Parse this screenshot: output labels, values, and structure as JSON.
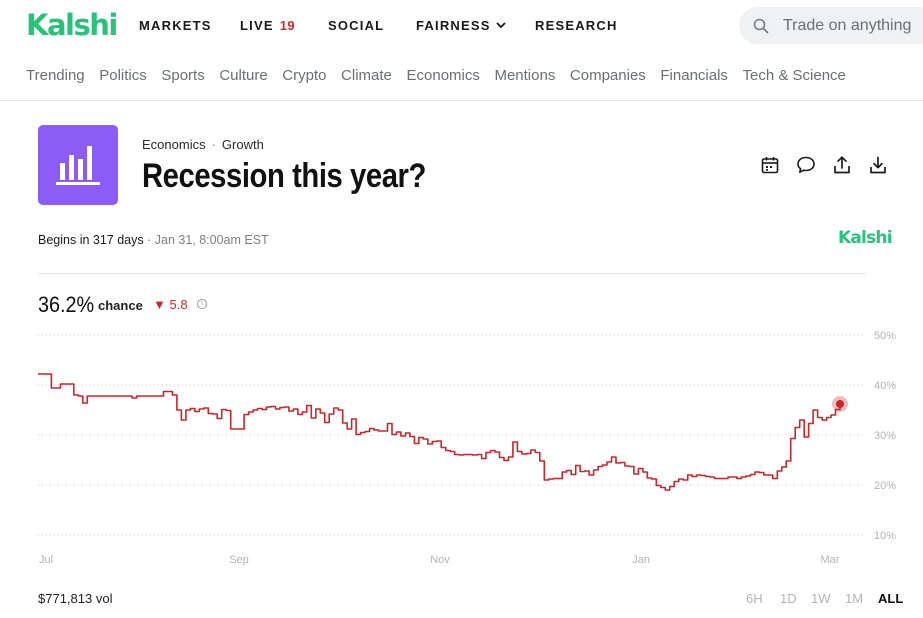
{
  "brand": {
    "name": "Kalshi",
    "color": "#28c27a"
  },
  "nav": {
    "markets": "MARKETS",
    "live": "LIVE",
    "live_count": "19",
    "social": "SOCIAL",
    "fairness": "FAIRNESS",
    "research": "RESEARCH"
  },
  "search": {
    "placeholder": "Trade on anything"
  },
  "categories": [
    "Trending",
    "Politics",
    "Sports",
    "Culture",
    "Crypto",
    "Climate",
    "Economics",
    "Mentions",
    "Companies",
    "Financials",
    "Tech & Science"
  ],
  "market": {
    "category": "Economics",
    "subcategory": "Growth",
    "title": "Recession this year?",
    "icon": "bar-chart-icon",
    "icon_color": "#8b5cf6",
    "begins_label": "Begins in 317 days",
    "begins_date": "Jan 31, 8:00am EST",
    "chance_value": "36.2%",
    "chance_label": "chance",
    "delta_symbol": "▼",
    "delta_value": "5.8",
    "volume": "$771,813 vol"
  },
  "actions": [
    "calendar-icon",
    "comment-icon",
    "share-icon",
    "download-icon"
  ],
  "time_ranges": [
    "6H",
    "1D",
    "1W",
    "1M",
    "ALL"
  ],
  "active_range": "ALL",
  "chart_data": {
    "type": "line",
    "title": "",
    "xlabel": "",
    "ylabel": "",
    "x_ticks": [
      "Jul",
      "Sep",
      "Nov",
      "Jan",
      "Mar"
    ],
    "y_ticks": [
      "50%",
      "40%",
      "30%",
      "20%",
      "10%"
    ],
    "ylim": [
      10,
      50
    ],
    "grid": "horizontal-dotted",
    "line_color": "#c8262b",
    "series": [
      {
        "values": [
          42.2,
          42.2,
          42.2,
          39.4,
          39.4,
          40.2,
          40.2,
          40.2,
          38.0,
          37.8,
          36.4,
          37.8,
          37.8,
          37.8,
          37.8,
          37.8,
          37.8,
          37.8,
          37.8,
          37.8,
          37.8,
          37.4,
          37.8,
          37.8,
          37.8,
          37.8,
          37.8,
          37.8,
          38.7,
          38.7,
          38.0,
          35.0,
          33.0,
          35.0,
          35.3,
          34.7,
          35.2,
          35.4,
          34.3,
          34.2,
          33.3,
          35.1,
          34.9,
          31.2,
          31.2,
          31.2,
          34.1,
          34.6,
          35.0,
          35.3,
          35.1,
          35.6,
          35.7,
          35.2,
          35.5,
          35.6,
          34.8,
          35.2,
          34.1,
          34.6,
          35.9,
          33.4,
          35.2,
          34.4,
          32.5,
          34.2,
          35.4,
          35.0,
          32.4,
          31.2,
          33.2,
          30.1,
          30.5,
          30.7,
          31.3,
          31.0,
          30.8,
          30.8,
          32.3,
          30.1,
          30.6,
          29.8,
          30.4,
          29.7,
          28.3,
          29.5,
          29.2,
          28.2,
          28.7,
          28.8,
          27.5,
          26.9,
          26.7,
          26.1,
          26.0,
          26.1,
          26.1,
          26.0,
          26.1,
          25.3,
          26.5,
          26.9,
          26.6,
          25.5,
          24.9,
          25.6,
          28.6,
          26.7,
          26.2,
          26.3,
          27.0,
          26.5,
          24.8,
          21.0,
          21.2,
          21.3,
          21.3,
          22.6,
          22.9,
          22.1,
          23.9,
          22.7,
          22.8,
          22.0,
          23.0,
          23.7,
          24.0,
          24.6,
          25.6,
          24.4,
          24.5,
          23.8,
          23.7,
          22.2,
          23.3,
          22.6,
          21.4,
          21.2,
          19.9,
          19.5,
          19.0,
          19.7,
          20.7,
          21.2,
          21.0,
          22.0,
          21.7,
          22.0,
          21.9,
          21.7,
          21.6,
          21.3,
          21.3,
          21.3,
          21.6,
          21.6,
          21.3,
          21.6,
          21.8,
          22.1,
          22.6,
          22.5,
          22.0,
          22.0,
          21.3,
          22.8,
          23.6,
          24.8,
          29.3,
          31.5,
          33.0,
          29.6,
          32.3,
          35.0,
          33.5,
          33.0,
          33.5,
          34.0,
          35.1,
          36.2
        ]
      }
    ]
  }
}
